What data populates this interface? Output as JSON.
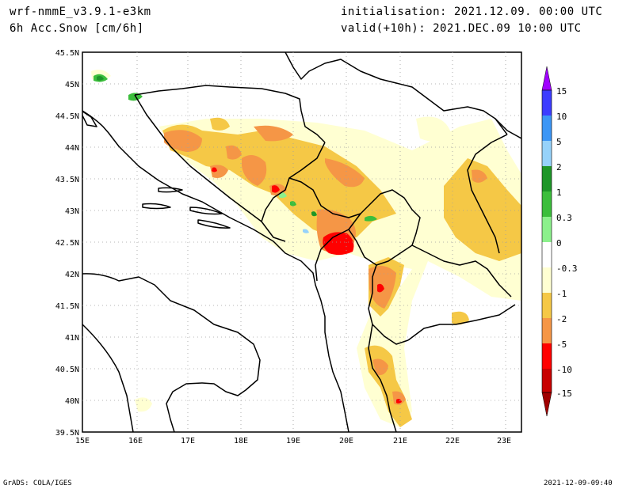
{
  "header": {
    "model": "wrf-nmmE_v3.9.1-e3km",
    "field": "6h Acc.Snow [cm/6h]",
    "init": "initialisation: 2021.12.09.  00:00 UTC",
    "valid": "valid(+10h): 2021.DEC.09 10:00 UTC"
  },
  "footer": {
    "credit": "GrADS: COLA/IGES",
    "timestamp": "2021-12-09-09:40"
  },
  "map": {
    "lat_labels": [
      "45.5N",
      "45N",
      "44.5N",
      "44N",
      "43.5N",
      "43N",
      "42.5N",
      "42N",
      "41.5N",
      "41N",
      "40.5N",
      "40N",
      "39.5N"
    ],
    "lon_labels": [
      "15E",
      "16E",
      "17E",
      "18E",
      "19E",
      "20E",
      "21E",
      "22E",
      "23E"
    ]
  },
  "legend": {
    "labels": [
      "15",
      "10",
      "5",
      "2",
      "1",
      "0.3",
      "0",
      "-0.3",
      "-1",
      "-2",
      "-5",
      "-10",
      "-15"
    ],
    "colors": [
      "#a000ff",
      "#3c3cff",
      "#3c96f5",
      "#96d2fa",
      "#1e9628",
      "#3cbe3c",
      "#8cf08c",
      "#ffffff",
      "#ffffd2",
      "#f5c846",
      "#f59646",
      "#ff0000",
      "#c80000",
      "#a00000"
    ]
  }
}
